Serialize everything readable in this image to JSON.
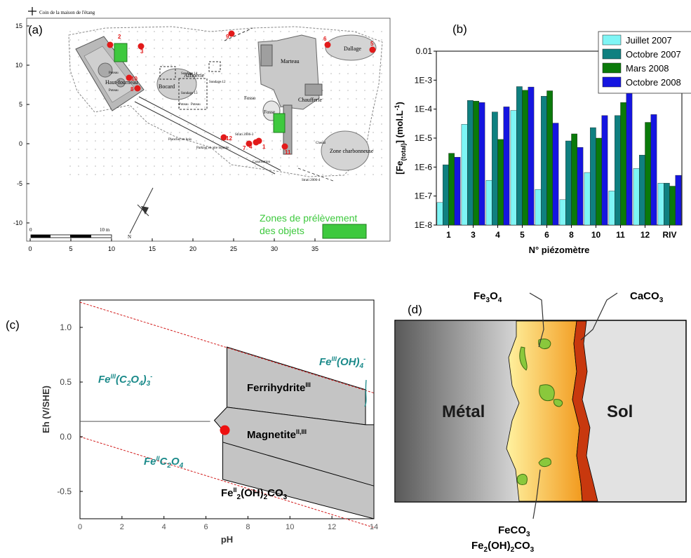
{
  "panel_a": {
    "label": "(a)",
    "legend_corner": "Coin de la maison de l'étang",
    "zones_line1": "Zones de prélèvement",
    "zones_line2": "des objets",
    "scale_zero": "0",
    "scale_ten": "10 m",
    "north": "N",
    "x_ticks": [
      "0",
      "5",
      "10",
      "15",
      "20",
      "25",
      "30",
      "35"
    ],
    "y_ticks": [
      "15",
      "10",
      "5",
      "0",
      "-5",
      "-10"
    ],
    "site_labels": [
      "Haut-fourneau",
      "Affinerie",
      "Bocard",
      "Marteau",
      "Fosse",
      "Fosse",
      "Chaufferie",
      "Dallage",
      "Zone charbonneuse",
      "Sondage 14",
      "Sondage 13",
      "Sondage 12",
      "Poteau",
      "Poteau",
      "Poteau",
      "Poteau",
      "Plancher en bois",
      "Strati 2006-3",
      "Strati 2006-4",
      "Parking en aire humide",
      "Canalisation",
      "Chenal"
    ],
    "sample_numbers": [
      "1",
      "2",
      "3",
      "4",
      "5",
      "6",
      "7",
      "8",
      "9",
      "10",
      "11",
      "12"
    ],
    "colors": {
      "sample": "#e21a1a",
      "zone": "#3ec93e"
    }
  },
  "panel_b": {
    "label": "(b)",
    "chart_data": {
      "type": "bar",
      "yscale": "log",
      "ylim": [
        1e-08,
        0.01
      ],
      "ylabel": "[Fe(total)] (mol.L-1)",
      "ylabel_main": "[Fe",
      "ylabel_sub": "(total)",
      "ylabel_rest": "] (mol.L",
      "ylabel_sup": "-1",
      "ylabel_end": ")",
      "xlabel": "N° piézomètre",
      "y_tick_labels": [
        "0.01",
        "1E-3",
        "1E-4",
        "1E-5",
        "1E-6",
        "1E-7",
        "1E-8"
      ],
      "categories": [
        "1",
        "3",
        "4",
        "5",
        "6",
        "8",
        "10",
        "11",
        "12",
        "RIV"
      ],
      "series": [
        {
          "name": "Juillet 2007",
          "color": "#7ff5f5",
          "values": [
            6e-08,
            3e-05,
            3.5e-07,
            9e-05,
            1.7e-07,
            7.5e-08,
            6.5e-07,
            1.5e-07,
            9e-07,
            2.8e-07
          ]
        },
        {
          "name": "Octobre 2007",
          "color": "#0f8080",
          "values": [
            1.2e-06,
            0.0002,
            8e-05,
            0.0006,
            0.00028,
            8e-06,
            2.3e-05,
            6e-05,
            2.6e-06,
            2.8e-07
          ]
        },
        {
          "name": "Mars 2008",
          "color": "#0a7a0a",
          "values": [
            3e-06,
            0.00019,
            9e-06,
            0.00045,
            0.00043,
            1.4e-05,
            1e-05,
            0.00017,
            3.5e-05,
            2.2e-07
          ]
        },
        {
          "name": "Octobre 2008",
          "color": "#1515e0",
          "values": [
            2.2e-06,
            0.00017,
            0.00012,
            0.00058,
            3.3e-05,
            4.8e-06,
            6e-05,
            0.00045,
            6.5e-05,
            5.2e-07
          ]
        }
      ],
      "legend_position": "top-right"
    }
  },
  "panel_c": {
    "label": "(c)",
    "chart_data": {
      "type": "diagram",
      "xlabel": "pH",
      "ylabel": "Eh (V/SHE)",
      "xlim": [
        0,
        14
      ],
      "ylim": [
        -0.75,
        1.25
      ],
      "x_tick_labels": [
        "0",
        "2",
        "4",
        "6",
        "8",
        "10",
        "12",
        "14"
      ],
      "y_tick_labels": [
        "1.0",
        "0.5",
        "0.0",
        "-0.5"
      ],
      "x_ticks": [
        0,
        2,
        4,
        6,
        8,
        10,
        12,
        14
      ],
      "y_ticks": [
        1.0,
        0.5,
        0.0,
        -0.5
      ],
      "point": {
        "pH": 6.9,
        "Eh": 0.06
      },
      "field_labels": {
        "oxalate3": {
          "base": "Fe",
          "sup": "III",
          "mid": "(C",
          "sub1": "2",
          "mid2": "O",
          "sub2": "4",
          "mid3": ")",
          "sub3": "3",
          "sup2": "-"
        },
        "oxalate": {
          "base": "Fe",
          "sup": "II",
          "mid": "C",
          "sub1": "2",
          "mid2": "O",
          "sub2": "4"
        },
        "hydroxo": {
          "base": "Fe",
          "sup": "III",
          "mid": "(OH)",
          "sub": "4",
          "sup2": "-"
        },
        "ferrihydrite": {
          "base": "Ferrihydrite",
          "sup": "III"
        },
        "magnetite": {
          "base": "Magnetite",
          "sup": "II,III"
        },
        "carbonate": {
          "base": "Fe",
          "sup": "II",
          "sub1": "2",
          "mid": "(OH)",
          "sub2": "2",
          "end": "CO",
          "sub3": "3"
        }
      }
    }
  },
  "panel_d": {
    "label": "(d)",
    "metal": "Métal",
    "soil": "Sol",
    "fe3o4": {
      "a": "Fe",
      "s1": "3",
      "b": "O",
      "s2": "4"
    },
    "caco3": {
      "a": "CaCO",
      "s1": "3"
    },
    "feco3": {
      "a": "FeCO",
      "s1": "3"
    },
    "fe2oh": {
      "a": "Fe",
      "s1": "2",
      "b": "(OH)",
      "s2": "2",
      "c": "CO",
      "s3": "3"
    },
    "colors": {
      "metal_dark": "#5a5a5a",
      "metal_light": "#d8d8d8",
      "soil": "#e2e2e2",
      "product_outer": "#fff2a0",
      "product_inner": "#f29a1e",
      "calcite": "#c8380e",
      "inclusion": "#8ac83c"
    }
  }
}
